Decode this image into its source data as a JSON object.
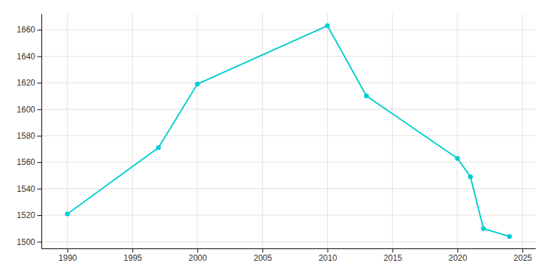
{
  "chart_data": {
    "type": "line",
    "x": [
      1990,
      1997,
      2000,
      2010,
      2013,
      2020,
      2021,
      2022,
      2024
    ],
    "values": [
      1521,
      1571,
      1619,
      1663,
      1610,
      1563,
      1549,
      1510,
      1504
    ],
    "color": "#00CED1",
    "marker": "circle",
    "xlim": [
      1988,
      2026
    ],
    "ylim": [
      1495,
      1672
    ],
    "xticks": [
      1990,
      1995,
      2000,
      2005,
      2010,
      2015,
      2020,
      2025
    ],
    "yticks": [
      1500,
      1520,
      1540,
      1560,
      1580,
      1600,
      1620,
      1640,
      1660
    ],
    "grid": true
  }
}
